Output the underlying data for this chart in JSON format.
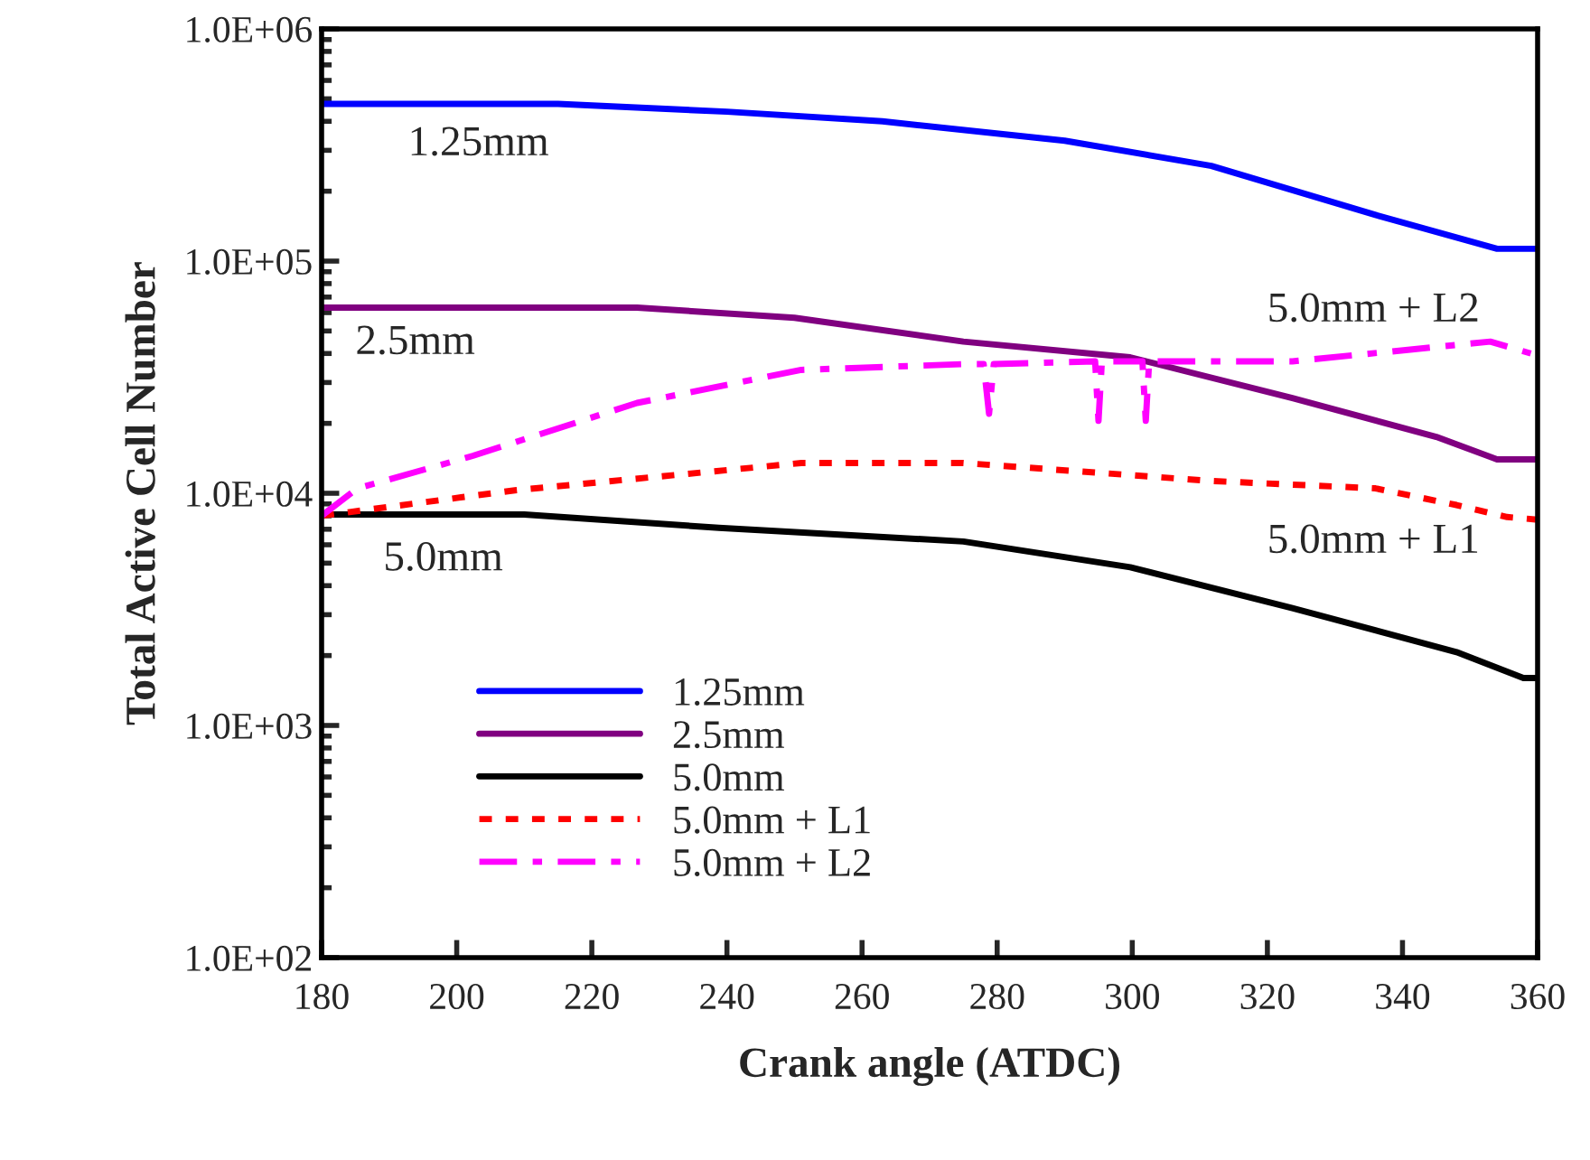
{
  "chart_data": {
    "type": "line",
    "xlabel": "Crank angle (ATDC)",
    "ylabel": "Total Active Cell Number",
    "log": "y",
    "xlim": [
      180,
      360
    ],
    "xticks": [
      180,
      200,
      220,
      240,
      260,
      280,
      300,
      320,
      340,
      360
    ],
    "ylim": [
      100,
      1000000
    ],
    "yticks": [
      {
        "value": 100,
        "label": "1.0E+02"
      },
      {
        "value": 1000,
        "label": "1.0E+03"
      },
      {
        "value": 10000,
        "label": "1.0E+04"
      },
      {
        "value": 100000,
        "label": "1.0E+05"
      },
      {
        "value": 1000000,
        "label": "1.0E+06"
      }
    ],
    "grid": false,
    "legend": "bottom left",
    "marker": "none",
    "series": [
      {
        "name": "1.25mm",
        "color": "#0000ff",
        "line_style": "solid",
        "x": [
          180,
          215,
          240,
          263,
          290,
          311.7,
          336,
          354,
          360
        ],
        "values": [
          475000,
          475000,
          440000,
          400000,
          330000,
          257000,
          158000,
          113000,
          113000
        ]
      },
      {
        "name": "2.5mm",
        "color": "#800080",
        "line_style": "solid",
        "x": [
          180,
          226.7,
          250,
          275,
          299.7,
          323.7,
          345,
          354,
          360
        ],
        "values": [
          63000,
          63000,
          57000,
          45000,
          38500,
          25700,
          17500,
          14000,
          14000
        ]
      },
      {
        "name": "5.0mm",
        "color": "#000000",
        "line_style": "solid",
        "x": [
          180,
          210,
          238.8,
          275,
          299.7,
          323.7,
          348,
          357.9,
          360
        ],
        "values": [
          8100,
          8100,
          7100,
          6200,
          4800,
          3200,
          2070,
          1600,
          1600
        ]
      },
      {
        "name": "5.0mm + L1",
        "color": "#ff0000",
        "line_style": "dotted",
        "x": [
          180,
          208.6,
          251,
          275,
          311.7,
          336,
          348,
          355.5,
          360
        ],
        "values": [
          8000,
          10300,
          13500,
          13500,
          11300,
          10500,
          8900,
          7900,
          7700
        ]
      },
      {
        "name": "5.0mm + L2",
        "color": "#ff00ff",
        "line_style": "dashdot",
        "x": [
          180,
          185.3,
          202.4,
          226.7,
          251,
          275,
          278,
          278.8,
          279.5,
          294.5,
          295,
          295.5,
          301.5,
          302,
          302.5,
          323.7,
          353,
          359
        ],
        "values": [
          8000,
          10500,
          14500,
          24500,
          34000,
          36000,
          36000,
          22000,
          36000,
          37000,
          20500,
          37000,
          37000,
          20500,
          37000,
          37000,
          45000,
          40000
        ]
      }
    ],
    "annotations": [
      "1.25mm",
      "2.5mm",
      "5.0mm + L2",
      "5.0mm",
      "5.0mm + L1"
    ]
  }
}
